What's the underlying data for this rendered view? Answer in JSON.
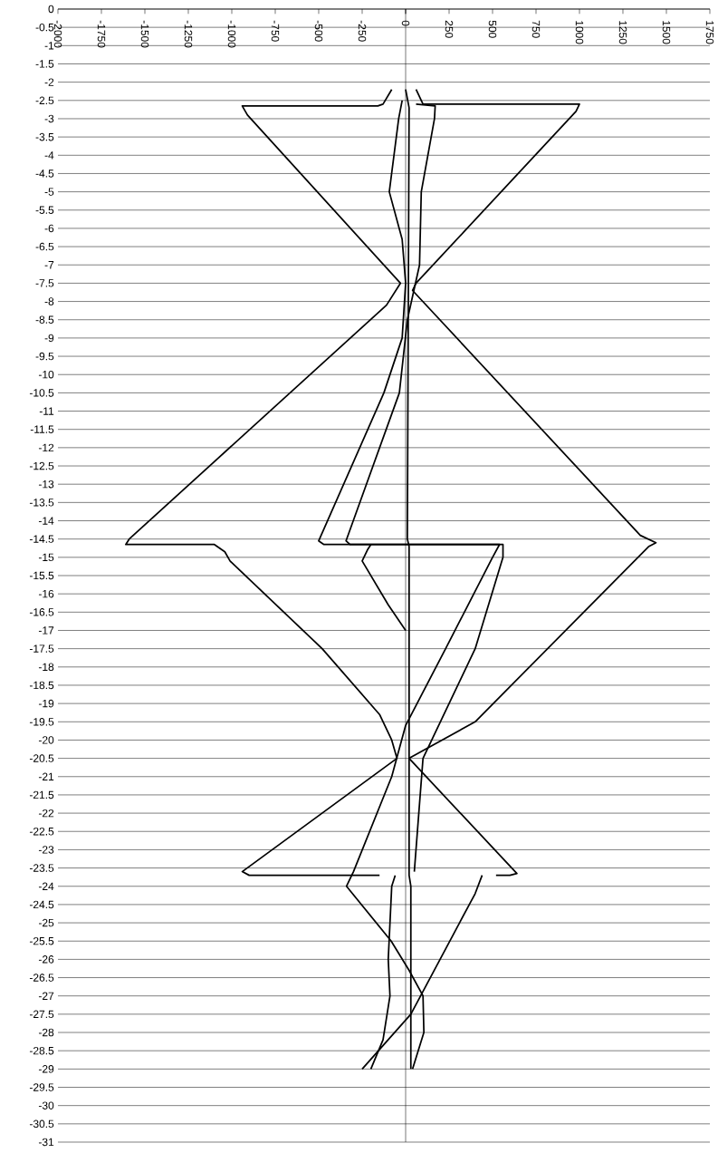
{
  "chart_data": {
    "type": "line",
    "xlim": [
      -2000,
      1750
    ],
    "ylim": [
      -31,
      0
    ],
    "xticks": [
      -2000,
      -1750,
      -1500,
      -1250,
      -1000,
      -750,
      -500,
      -250,
      0,
      250,
      500,
      750,
      1000,
      1250,
      1500,
      1750
    ],
    "yticks": [
      0,
      -0.5,
      -1,
      -1.5,
      -2,
      -2.5,
      -3,
      -3.5,
      -4,
      -4.5,
      -5,
      -5.5,
      -6,
      -6.5,
      -7,
      -7.5,
      -8,
      -8.5,
      -9,
      -9.5,
      -10,
      -10.5,
      -11,
      -11.5,
      -12,
      -12.5,
      -13,
      -13.5,
      -14,
      -14.5,
      -15,
      -15.5,
      -16,
      -16.5,
      -17,
      -17.5,
      -18,
      -18.5,
      -19,
      -19.5,
      -20,
      -20.5,
      -21,
      -21.5,
      -22,
      -22.5,
      -23,
      -23.5,
      -24,
      -24.5,
      -25,
      -25.5,
      -26,
      -26.5,
      -27,
      -27.5,
      -28,
      -28.5,
      -29,
      -29.5,
      -30,
      -30.5,
      -31
    ],
    "grid": "y",
    "marker": "none",
    "line_style": "solid",
    "series": [
      {
        "color": "#000000",
        "x": [
          -80,
          -130,
          -160,
          -940,
          -910,
          -30,
          -110,
          -1590,
          -1610,
          -1100,
          -1040,
          -1010,
          -480,
          -150,
          -80,
          -50,
          -940,
          -900,
          -150
        ],
        "values": [
          -2.2,
          -2.6,
          -2.65,
          -2.65,
          -2.9,
          -7.5,
          -8.1,
          -14.5,
          -14.65,
          -14.65,
          -14.85,
          -15.1,
          -17.5,
          -19.3,
          -20,
          -20.5,
          -23.6,
          -23.7,
          -23.7
        ]
      },
      {
        "color": "#000000",
        "x": [
          60,
          100,
          1000,
          980,
          60,
          40,
          1350,
          1440,
          1400,
          400,
          20,
          640,
          600,
          520
        ],
        "values": [
          -2.2,
          -2.6,
          -2.6,
          -2.8,
          -7.5,
          -7.7,
          -14.4,
          -14.6,
          -14.7,
          -19.5,
          -20.5,
          -23.65,
          -23.7,
          -23.7
        ]
      },
      {
        "color": "#000000",
        "x": [
          0,
          20,
          10,
          20,
          20,
          30,
          30
        ],
        "values": [
          -2.2,
          -2.7,
          -14.5,
          -14.7,
          -23.7,
          -24,
          -29
        ]
      },
      {
        "color": "#000000",
        "x": [
          -20,
          -40,
          -94,
          -20,
          0,
          -20,
          -125,
          -500,
          -470,
          540,
          500,
          230,
          0,
          -80,
          -300,
          -340,
          -83,
          20,
          100,
          105,
          40
        ],
        "values": [
          -2.5,
          -3,
          -5,
          -6.3,
          -7.5,
          -9,
          -10.5,
          -14.55,
          -14.65,
          -14.65,
          -15,
          -17.5,
          -19.6,
          -21,
          -23.6,
          -24,
          -25.5,
          -26.3,
          -27,
          -28,
          -29
        ]
      },
      {
        "color": "#000000",
        "x": [
          60,
          170,
          166,
          90,
          80,
          10,
          -36,
          -343,
          -320,
          560,
          560,
          400,
          100,
          50
        ],
        "values": [
          -2.6,
          -2.65,
          -3,
          -5,
          -7,
          -8.5,
          -10.5,
          -14.55,
          -14.65,
          -14.65,
          -15,
          -17.5,
          -20.5,
          -23.6
        ]
      },
      {
        "color": "#000000",
        "x": [
          -60,
          -80,
          -95,
          -100,
          -90,
          -130,
          -200
        ],
        "values": [
          -23.7,
          -24,
          -25.5,
          -26,
          -27,
          -28.2,
          -29
        ]
      },
      {
        "color": "#000000",
        "x": [
          440,
          400,
          310,
          30,
          -250
        ],
        "values": [
          -23.7,
          -24.2,
          -25,
          -27.5,
          -29
        ]
      },
      {
        "color": "#000000",
        "x": [
          -200,
          -220,
          -250,
          -100,
          0
        ],
        "values": [
          -14.65,
          -14.8,
          -15.1,
          -16.3,
          -17
        ]
      }
    ]
  }
}
